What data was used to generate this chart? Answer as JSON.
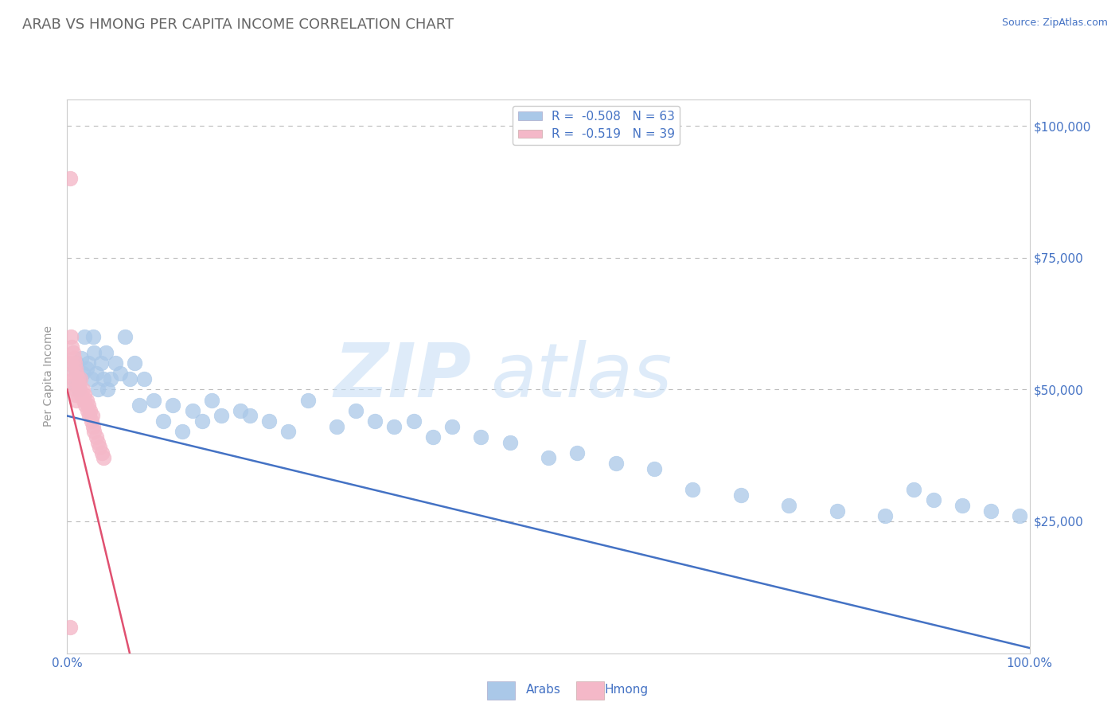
{
  "title": "ARAB VS HMONG PER CAPITA INCOME CORRELATION CHART",
  "source_text": "Source: ZipAtlas.com",
  "ylabel": "Per Capita Income",
  "xlim": [
    0,
    1.0
  ],
  "ylim": [
    0,
    105000
  ],
  "ytick_values": [
    0,
    25000,
    50000,
    75000,
    100000
  ],
  "ytick_labels": [
    "",
    "$25,000",
    "$50,000",
    "$75,000",
    "$100,000"
  ],
  "title_color": "#666666",
  "title_fontsize": 13,
  "tick_label_color": "#4472c4",
  "background_color": "#ffffff",
  "grid_color": "#bbbbbb",
  "watermark_text1": "ZIP",
  "watermark_text2": "atlas",
  "arab_color": "#aac8e8",
  "hmong_color": "#f4b8c8",
  "arab_line_color": "#4472c4",
  "hmong_line_color": "#e05070",
  "legend_arab_label": "R =  -0.508   N = 63",
  "legend_hmong_label": "R =  -0.519   N = 39",
  "arab_scatter_x": [
    0.008,
    0.009,
    0.01,
    0.012,
    0.013,
    0.015,
    0.016,
    0.018,
    0.02,
    0.022,
    0.025,
    0.027,
    0.028,
    0.03,
    0.032,
    0.035,
    0.038,
    0.04,
    0.042,
    0.045,
    0.05,
    0.055,
    0.06,
    0.065,
    0.07,
    0.075,
    0.08,
    0.09,
    0.1,
    0.11,
    0.12,
    0.13,
    0.14,
    0.15,
    0.16,
    0.18,
    0.19,
    0.21,
    0.23,
    0.25,
    0.28,
    0.3,
    0.32,
    0.34,
    0.36,
    0.38,
    0.4,
    0.43,
    0.46,
    0.5,
    0.53,
    0.57,
    0.61,
    0.65,
    0.7,
    0.75,
    0.8,
    0.85,
    0.88,
    0.9,
    0.93,
    0.96,
    0.99
  ],
  "arab_scatter_y": [
    54000,
    51000,
    55000,
    50000,
    52000,
    56000,
    53000,
    60000,
    54000,
    55000,
    52000,
    60000,
    57000,
    53000,
    50000,
    55000,
    52000,
    57000,
    50000,
    52000,
    55000,
    53000,
    60000,
    52000,
    55000,
    47000,
    52000,
    48000,
    44000,
    47000,
    42000,
    46000,
    44000,
    48000,
    45000,
    46000,
    45000,
    44000,
    42000,
    48000,
    43000,
    46000,
    44000,
    43000,
    44000,
    41000,
    43000,
    41000,
    40000,
    37000,
    38000,
    36000,
    35000,
    31000,
    30000,
    28000,
    27000,
    26000,
    31000,
    29000,
    28000,
    27000,
    26000
  ],
  "hmong_scatter_x": [
    0.003,
    0.004,
    0.004,
    0.005,
    0.005,
    0.006,
    0.006,
    0.007,
    0.007,
    0.008,
    0.008,
    0.009,
    0.009,
    0.01,
    0.01,
    0.011,
    0.012,
    0.013,
    0.014,
    0.015,
    0.016,
    0.017,
    0.018,
    0.019,
    0.02,
    0.021,
    0.022,
    0.023,
    0.024,
    0.025,
    0.026,
    0.027,
    0.028,
    0.03,
    0.032,
    0.034,
    0.036,
    0.038,
    0.003
  ],
  "hmong_scatter_y": [
    90000,
    60000,
    55000,
    58000,
    53000,
    57000,
    52000,
    56000,
    51000,
    55000,
    50000,
    54000,
    49000,
    53000,
    48000,
    52000,
    51000,
    50000,
    52000,
    49000,
    50000,
    48000,
    49000,
    47000,
    48000,
    46000,
    47000,
    45000,
    46000,
    44000,
    45000,
    43000,
    42000,
    41000,
    40000,
    39000,
    38000,
    37000,
    5000
  ],
  "arab_line_x0": 0.0,
  "arab_line_y0": 45000,
  "arab_line_x1": 1.0,
  "arab_line_y1": 1000,
  "hmong_line_x0": 0.0,
  "hmong_line_y0": 50000,
  "hmong_line_x1": 0.065,
  "hmong_line_y1": 0
}
